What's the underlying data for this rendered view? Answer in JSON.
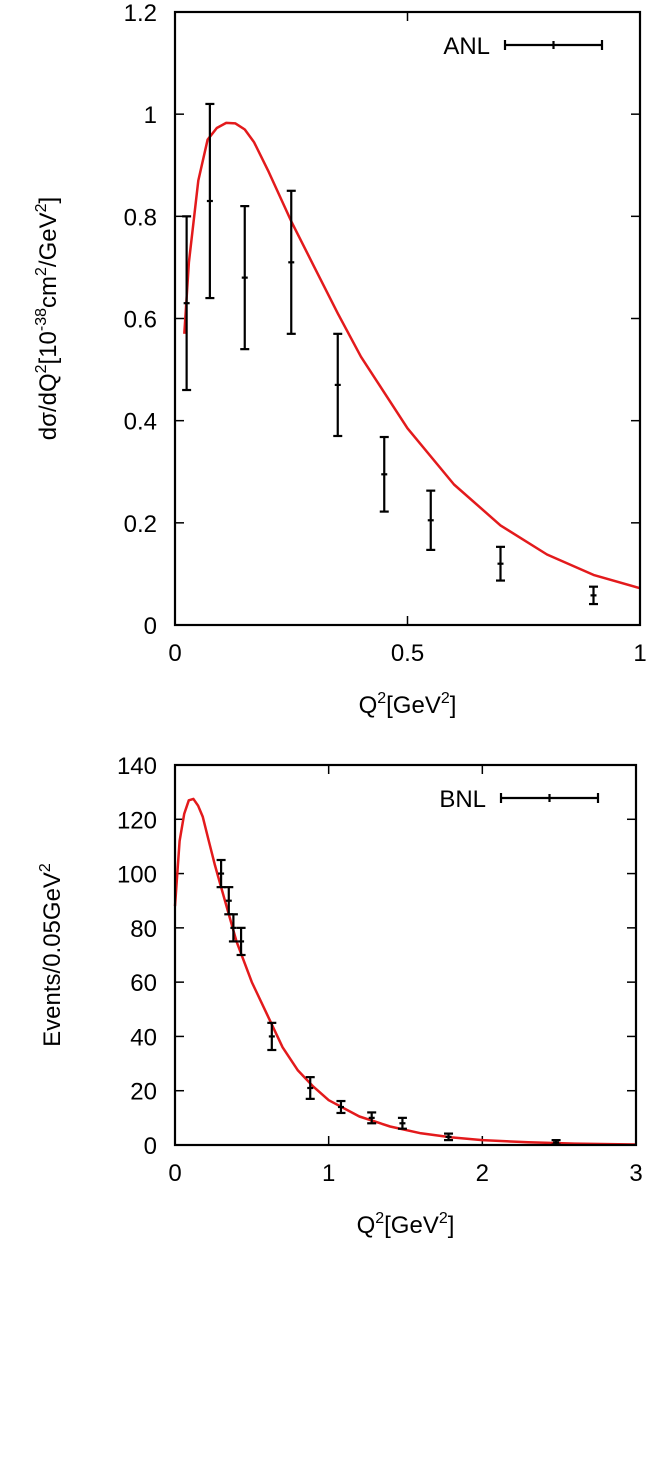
{
  "chart_data": [
    {
      "type": "line",
      "xlim": [
        0,
        1
      ],
      "ylim": [
        0,
        1.2
      ],
      "xticks": [
        "0",
        "0.5",
        "1"
      ],
      "yticks": [
        "0",
        "0.2",
        "0.4",
        "0.6",
        "0.8",
        "1",
        "1.2"
      ],
      "xlabel": {
        "base": "Q",
        "exp": "2",
        "bracket_open": "[GeV",
        "exp2": "2",
        "bracket_close": "]"
      },
      "ylabel": {
        "t1": "dσ/dQ",
        "e1": "2",
        "t2": "[10",
        "e2": "-38",
        "t3": "cm",
        "e3": "2",
        "t4": "/GeV",
        "e4": "2",
        "t5": "]"
      },
      "legend_position": "top-right",
      "series": [
        {
          "name": "ANL",
          "kind": "errorbar",
          "x": [
            0.025,
            0.075,
            0.15,
            0.25,
            0.35,
            0.45,
            0.55,
            0.7,
            0.9
          ],
          "y": [
            0.63,
            0.83,
            0.68,
            0.71,
            0.47,
            0.295,
            0.205,
            0.12,
            0.058
          ],
          "yerr": [
            0.17,
            0.19,
            0.14,
            0.14,
            0.1,
            0.073,
            0.058,
            0.033,
            0.017
          ],
          "color": "#000000"
        },
        {
          "kind": "curve",
          "x": [
            0.02,
            0.03,
            0.05,
            0.07,
            0.09,
            0.11,
            0.13,
            0.15,
            0.17,
            0.2,
            0.25,
            0.3,
            0.35,
            0.4,
            0.5,
            0.6,
            0.7,
            0.8,
            0.9,
            1.0
          ],
          "y": [
            0.57,
            0.71,
            0.87,
            0.95,
            0.973,
            0.983,
            0.982,
            0.97,
            0.945,
            0.89,
            0.79,
            0.7,
            0.61,
            0.525,
            0.385,
            0.275,
            0.195,
            0.138,
            0.098,
            0.072
          ],
          "color": "#e31a1c"
        }
      ]
    },
    {
      "type": "line",
      "xlim": [
        0,
        3
      ],
      "ylim": [
        0,
        140
      ],
      "xticks": [
        "0",
        "1",
        "2",
        "3"
      ],
      "yticks": [
        "0",
        "20",
        "40",
        "60",
        "80",
        "100",
        "120",
        "140"
      ],
      "xlabel": {
        "base": "Q",
        "exp": "2",
        "bracket_open": "[GeV",
        "exp2": "2",
        "bracket_close": "]"
      },
      "ylabel": {
        "t1": "Events/0.05GeV",
        "e1": "2"
      },
      "legend_position": "top-right",
      "series": [
        {
          "name": "BNL",
          "kind": "errorbar",
          "x": [
            0.3,
            0.35,
            0.38,
            0.43,
            0.63,
            0.88,
            1.08,
            1.28,
            1.48,
            1.78,
            2.48
          ],
          "y": [
            100,
            90,
            80,
            75,
            40,
            21,
            14,
            10,
            8,
            3,
            1
          ],
          "yerr": [
            5,
            5,
            5,
            5,
            5,
            4,
            2.2,
            2,
            2,
            1.2,
            0.8
          ],
          "color": "#000000"
        },
        {
          "kind": "curve",
          "x": [
            0.0,
            0.03,
            0.06,
            0.09,
            0.12,
            0.15,
            0.18,
            0.22,
            0.26,
            0.3,
            0.35,
            0.4,
            0.5,
            0.6,
            0.7,
            0.8,
            0.9,
            1.0,
            1.2,
            1.4,
            1.6,
            1.8,
            2.0,
            2.3,
            2.6,
            3.0
          ],
          "y": [
            88,
            112,
            122,
            127,
            127.5,
            125,
            121,
            112,
            103,
            95,
            85,
            75,
            60,
            48,
            36,
            27.5,
            21.5,
            16.5,
            10.5,
            6.8,
            4.3,
            2.8,
            1.8,
            1.0,
            0.5,
            0.2
          ],
          "color": "#e31a1c"
        }
      ]
    }
  ]
}
